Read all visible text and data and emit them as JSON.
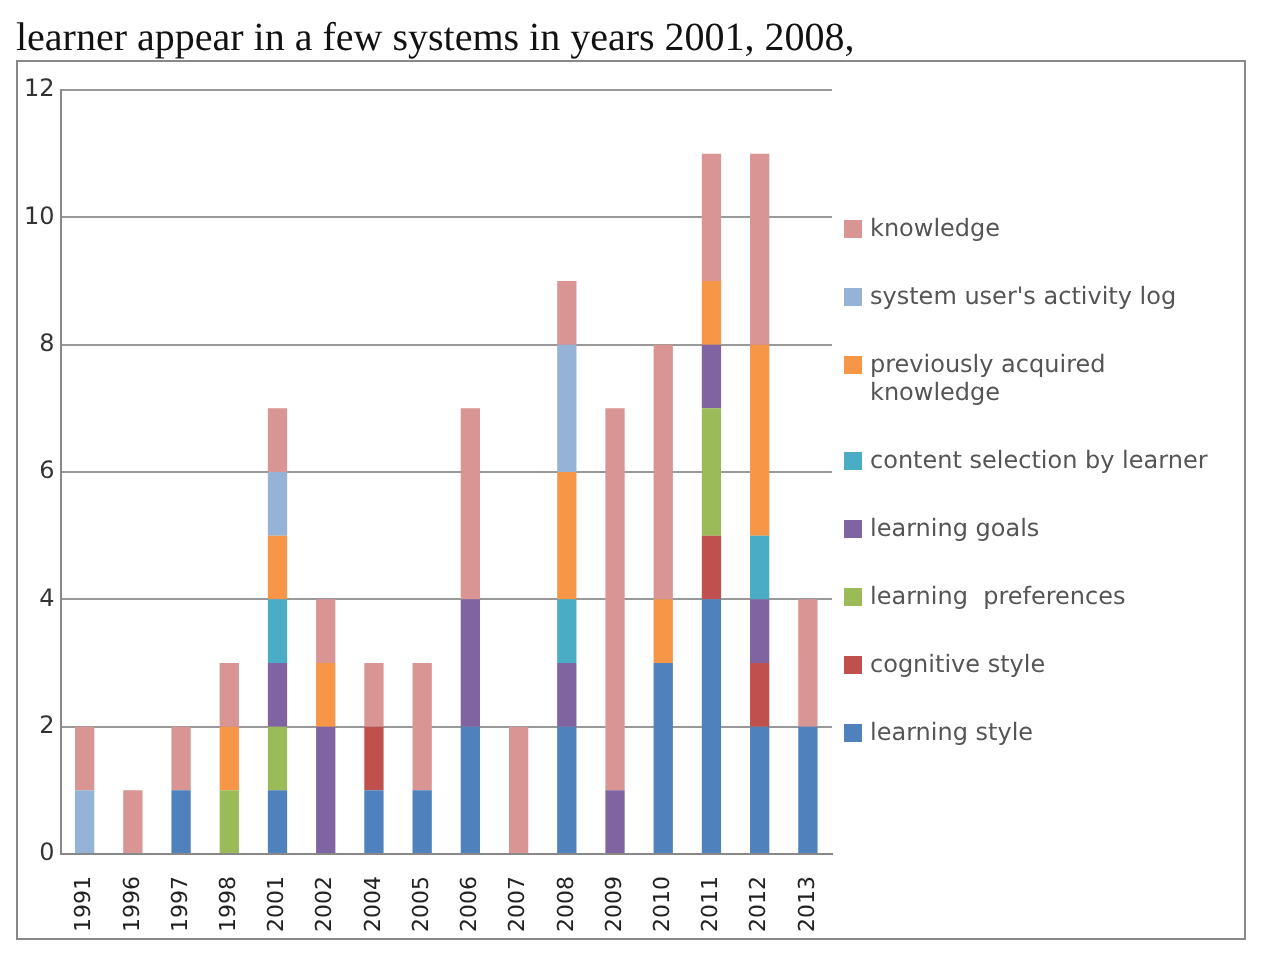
{
  "chart_data": {
    "type": "bar",
    "stacked": true,
    "annotations": [
      "learner appear in a few systems in years 2001, 2008,"
    ],
    "categories": [
      "1991",
      "1996",
      "1997",
      "1998",
      "2001",
      "2002",
      "2004",
      "2005",
      "2006",
      "2007",
      "2008",
      "2009",
      "2010",
      "2011",
      "2012",
      "2013"
    ],
    "series": [
      {
        "name": "learning style",
        "color": "#4f81bd",
        "values": [
          0,
          0,
          1,
          0,
          1,
          0,
          1,
          1,
          2,
          0,
          2,
          0,
          3,
          4,
          2,
          2
        ]
      },
      {
        "name": "cognitive style",
        "color": "#c0504d",
        "values": [
          0,
          0,
          0,
          0,
          0,
          0,
          1,
          0,
          0,
          0,
          0,
          0,
          0,
          1,
          1,
          0
        ]
      },
      {
        "name": "learning  preferences",
        "color": "#9bbb59",
        "values": [
          0,
          0,
          0,
          1,
          1,
          0,
          0,
          0,
          0,
          0,
          0,
          0,
          0,
          2,
          0,
          0
        ]
      },
      {
        "name": "learning goals",
        "color": "#8064a2",
        "values": [
          0,
          0,
          0,
          0,
          1,
          2,
          0,
          0,
          2,
          0,
          1,
          1,
          0,
          1,
          1,
          0
        ]
      },
      {
        "name": "content selection by learner",
        "color": "#4bacc6",
        "values": [
          0,
          0,
          0,
          0,
          1,
          0,
          0,
          0,
          0,
          0,
          1,
          0,
          0,
          0,
          1,
          0
        ]
      },
      {
        "name": "previously acquired knowledge",
        "color": "#f79646",
        "values": [
          0,
          0,
          0,
          1,
          1,
          1,
          0,
          0,
          0,
          0,
          2,
          0,
          1,
          1,
          3,
          0
        ]
      },
      {
        "name": "system user's activity log",
        "color": "#95b3d7",
        "values": [
          1,
          0,
          0,
          0,
          1,
          0,
          0,
          0,
          0,
          0,
          2,
          0,
          0,
          0,
          0,
          0
        ]
      },
      {
        "name": "knowledge",
        "color": "#d99594",
        "values": [
          1,
          1,
          1,
          1,
          1,
          1,
          1,
          2,
          3,
          2,
          1,
          6,
          4,
          2,
          3,
          2
        ]
      }
    ],
    "ylim": [
      0,
      12
    ],
    "yticks": [
      0,
      2,
      4,
      6,
      8,
      10,
      12
    ],
    "grid": "y",
    "legend": "right"
  }
}
